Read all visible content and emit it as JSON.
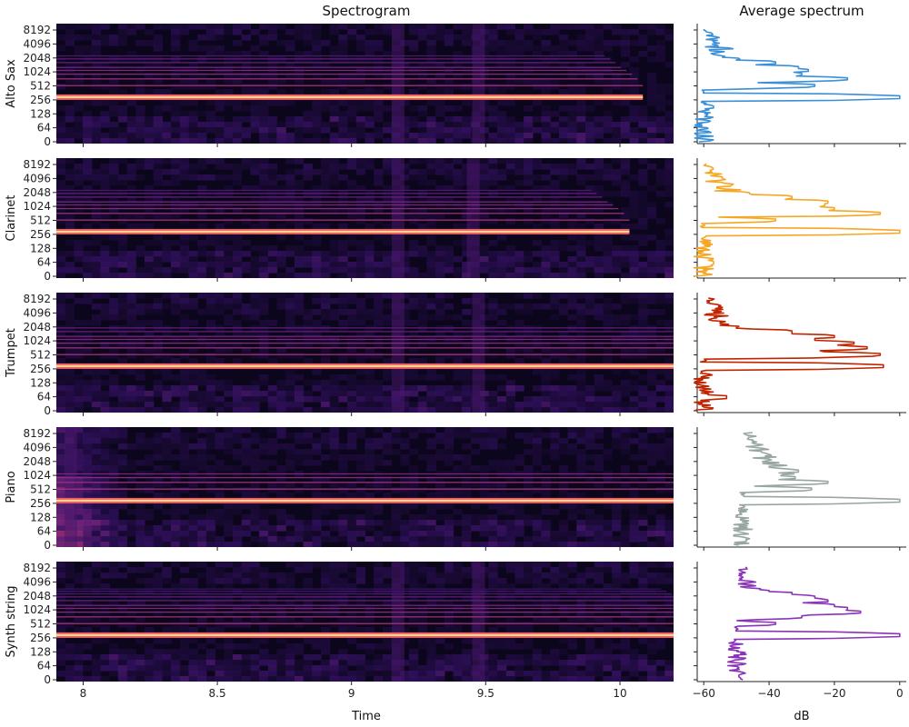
{
  "titles": {
    "spectrogram": "Spectrogram",
    "average": "Average spectrum"
  },
  "axis_labels": {
    "time": "Time",
    "db": "dB"
  },
  "chart_data": [
    {
      "type": "heatmap",
      "title": "Spectrogram",
      "xlabel": "Time",
      "xlim": [
        7.9,
        10.2
      ],
      "x_ticks": [
        "8",
        "8.5",
        "9",
        "9.5",
        "10"
      ],
      "y_scale": "log2 (frequency, Hz)",
      "y_ticks": [
        "0",
        "64",
        "128",
        "256",
        "512",
        "1024",
        "2048",
        "4096",
        "8192"
      ],
      "colormap": "magma",
      "rows": [
        {
          "name": "Alto Sax",
          "fundamental_hz": 330,
          "harmonics": [
            660,
            990,
            1320,
            1650,
            1980,
            2640,
            3300,
            3960
          ],
          "onsets": [
            9.17,
            9.47
          ],
          "fade_end": 9.95
        },
        {
          "name": "Clarinet",
          "fundamental_hz": 330,
          "harmonics": [
            660,
            990,
            1320,
            1650,
            1980,
            2640,
            3300,
            3960
          ],
          "onsets": [
            9.17,
            9.45
          ],
          "fade_end": 9.9
        },
        {
          "name": "Trumpet",
          "fundamental_hz": 330,
          "harmonics": [
            660,
            990,
            1320,
            1650,
            1980,
            2640,
            3300
          ],
          "onsets": [
            9.17,
            9.47
          ],
          "fade_end": 10.2
        },
        {
          "name": "Piano",
          "fundamental_hz": 330,
          "harmonics": [
            660,
            990,
            1320,
            1650
          ],
          "onsets": [
            7.95
          ],
          "fade_end": 10.2
        },
        {
          "name": "Synth string",
          "fundamental_hz": 330,
          "harmonics": [
            660,
            990,
            1320,
            1650,
            1980,
            2640,
            3300,
            3960,
            4620,
            5280
          ],
          "onsets": [
            9.17,
            9.47
          ],
          "fade_end": 10.2
        }
      ]
    },
    {
      "type": "line",
      "title": "Average spectrum",
      "xlabel": "dB",
      "xlim": [
        -62,
        2
      ],
      "x_ticks": [
        -60,
        -40,
        -20,
        0
      ],
      "y_ticks": [
        "0",
        "64",
        "128",
        "256",
        "512",
        "1024",
        "2048",
        "4096",
        "8192"
      ],
      "series": [
        {
          "name": "Alto Sax",
          "color": "#3a8fd6",
          "floor_db": -60,
          "peaks": [
            {
              "hz": 180,
              "db": -57
            },
            {
              "hz": 330,
              "db": 0
            },
            {
              "hz": 660,
              "db": -26
            },
            {
              "hz": 990,
              "db": -16
            },
            {
              "hz": 1320,
              "db": -30
            },
            {
              "hz": 1650,
              "db": -28
            },
            {
              "hz": 1980,
              "db": -31
            },
            {
              "hz": 2640,
              "db": -38
            },
            {
              "hz": 3300,
              "db": -52
            },
            {
              "hz": 3960,
              "db": -57
            }
          ]
        },
        {
          "name": "Clarinet",
          "color": "#f5a623",
          "floor_db": -60,
          "peaks": [
            {
              "hz": 40,
              "db": -57
            },
            {
              "hz": 330,
              "db": 0
            },
            {
              "hz": 660,
              "db": -38
            },
            {
              "hz": 990,
              "db": -6
            },
            {
              "hz": 1320,
              "db": -20
            },
            {
              "hz": 1650,
              "db": -23
            },
            {
              "hz": 1980,
              "db": -22
            },
            {
              "hz": 2640,
              "db": -33
            },
            {
              "hz": 3300,
              "db": -46
            },
            {
              "hz": 4600,
              "db": -56
            }
          ]
        },
        {
          "name": "Trumpet",
          "color": "#c12500",
          "floor_db": -60,
          "peaks": [
            {
              "hz": 40,
              "db": -53
            },
            {
              "hz": 330,
              "db": -5
            },
            {
              "hz": 660,
              "db": -6
            },
            {
              "hz": 990,
              "db": -10
            },
            {
              "hz": 1320,
              "db": -14
            },
            {
              "hz": 1650,
              "db": -26
            },
            {
              "hz": 1980,
              "db": -20
            },
            {
              "hz": 2640,
              "db": -33
            },
            {
              "hz": 3300,
              "db": -50
            },
            {
              "hz": 4200,
              "db": -55
            }
          ]
        },
        {
          "name": "Piano",
          "color": "#97a6a2",
          "floor_db": -48,
          "peaks": [
            {
              "hz": 330,
              "db": 0
            },
            {
              "hz": 660,
              "db": -27
            },
            {
              "hz": 990,
              "db": -22
            },
            {
              "hz": 1320,
              "db": -32
            },
            {
              "hz": 1650,
              "db": -38
            },
            {
              "hz": 1980,
              "db": -31
            },
            {
              "hz": 2640,
              "db": -40
            },
            {
              "hz": 3300,
              "db": -46
            },
            {
              "hz": 4200,
              "db": -56
            }
          ]
        },
        {
          "name": "Synth string",
          "color": "#8a32b8",
          "floor_db": -50,
          "peaks": [
            {
              "hz": 330,
              "db": 0
            },
            {
              "hz": 660,
              "db": -38
            },
            {
              "hz": 990,
              "db": -30
            },
            {
              "hz": 1320,
              "db": -12
            },
            {
              "hz": 1650,
              "db": -16
            },
            {
              "hz": 1980,
              "db": -20
            },
            {
              "hz": 2640,
              "db": -22
            },
            {
              "hz": 3300,
              "db": -26
            },
            {
              "hz": 3960,
              "db": -33
            },
            {
              "hz": 4620,
              "db": -40
            },
            {
              "hz": 5280,
              "db": -47
            }
          ]
        }
      ]
    }
  ]
}
